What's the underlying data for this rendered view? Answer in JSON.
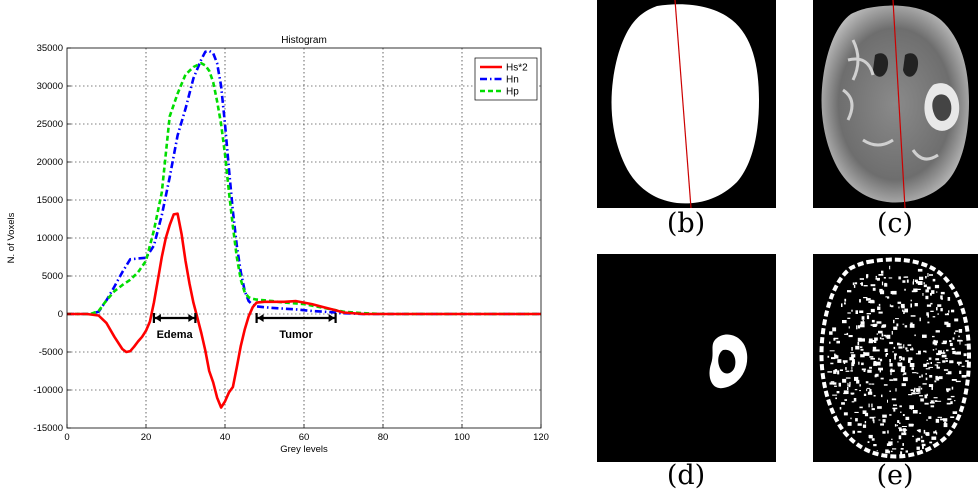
{
  "chart_data": {
    "type": "line",
    "title": "Histogram",
    "xlabel": "Grey levels",
    "ylabel": "N. of Voxels",
    "xlim": [
      0,
      120
    ],
    "ylim": [
      -15000,
      35000
    ],
    "xticks": [
      0,
      20,
      40,
      60,
      80,
      100,
      120
    ],
    "yticks": [
      -15000,
      -10000,
      -5000,
      0,
      5000,
      10000,
      15000,
      20000,
      25000,
      30000,
      35000
    ],
    "grid": true,
    "legend_position": "top-right",
    "series": [
      {
        "name": "Hs*2",
        "color": "#ff0000",
        "style": "solid",
        "x": [
          0,
          5,
          8,
          10,
          12,
          14,
          15,
          16,
          17,
          18,
          19,
          20,
          21,
          22,
          23,
          24,
          25,
          26,
          27,
          28,
          29,
          30,
          31,
          32,
          33,
          34,
          35,
          36,
          37,
          38,
          39,
          40,
          41,
          42,
          43,
          44,
          45,
          46,
          47,
          48,
          50,
          52,
          55,
          58,
          60,
          62,
          65,
          68,
          70,
          75,
          80,
          90,
          100,
          110,
          120
        ],
        "y": [
          0,
          0,
          -200,
          -1200,
          -3000,
          -4600,
          -5000,
          -4900,
          -4300,
          -3600,
          -3000,
          -2200,
          -1000,
          1500,
          4500,
          7500,
          10000,
          11700,
          13100,
          13200,
          10500,
          7000,
          4000,
          1500,
          -500,
          -2500,
          -4800,
          -7500,
          -9000,
          -11000,
          -12300,
          -11500,
          -10300,
          -9600,
          -7000,
          -4200,
          -2000,
          -300,
          900,
          1500,
          1600,
          1600,
          1600,
          1700,
          1500,
          1300,
          900,
          500,
          200,
          0,
          0,
          0,
          0,
          0,
          0
        ]
      },
      {
        "name": "Hn",
        "color": "#0000ff",
        "style": "dashdot",
        "x": [
          0,
          6,
          8,
          10,
          12,
          14,
          16,
          18,
          20,
          22,
          24,
          26,
          28,
          30,
          32,
          34,
          35,
          36,
          37,
          38,
          39,
          40,
          41,
          42,
          43,
          44,
          45,
          46,
          47,
          48,
          50,
          52,
          55,
          58,
          60,
          62,
          65,
          68,
          70,
          75,
          80,
          90,
          100,
          110,
          120
        ],
        "y": [
          0,
          0,
          300,
          1800,
          3600,
          5500,
          7200,
          7300,
          7400,
          9000,
          13000,
          18000,
          23500,
          27000,
          31000,
          33500,
          34500,
          34600,
          34300,
          33000,
          30000,
          25000,
          19000,
          13500,
          9000,
          5500,
          3000,
          1700,
          1200,
          1000,
          900,
          800,
          700,
          600,
          500,
          400,
          300,
          200,
          100,
          0,
          0,
          0,
          0,
          0,
          0
        ]
      },
      {
        "name": "Hp",
        "color": "#00dd00",
        "style": "dashed",
        "x": [
          0,
          6,
          8,
          10,
          12,
          14,
          16,
          18,
          20,
          22,
          24,
          26,
          28,
          30,
          32,
          34,
          35,
          36,
          37,
          38,
          39,
          40,
          41,
          42,
          43,
          44,
          45,
          46,
          47,
          48,
          50,
          52,
          55,
          58,
          60,
          62,
          65,
          68,
          70,
          75,
          80,
          90,
          100,
          110,
          120
        ],
        "y": [
          0,
          0,
          400,
          1800,
          3000,
          3800,
          4500,
          5500,
          7000,
          11000,
          16000,
          26000,
          29000,
          31500,
          32500,
          33000,
          32700,
          32000,
          30500,
          28000,
          25000,
          21000,
          16000,
          11500,
          7500,
          4500,
          2800,
          2200,
          2000,
          1900,
          1800,
          1700,
          1500,
          1400,
          1300,
          1100,
          800,
          500,
          300,
          100,
          0,
          0,
          0,
          0,
          0
        ]
      }
    ],
    "annotations": [
      {
        "text": "Edema",
        "x_from": 22,
        "x_to": 32.5,
        "y": 0
      },
      {
        "text": "Tumor",
        "x_from": 48,
        "x_to": 68,
        "y": 0
      }
    ]
  },
  "panels": [
    {
      "id": "b",
      "caption": "(b)"
    },
    {
      "id": "c",
      "caption": "(c)"
    },
    {
      "id": "d",
      "caption": "(d)"
    },
    {
      "id": "e",
      "caption": "(e)"
    }
  ]
}
